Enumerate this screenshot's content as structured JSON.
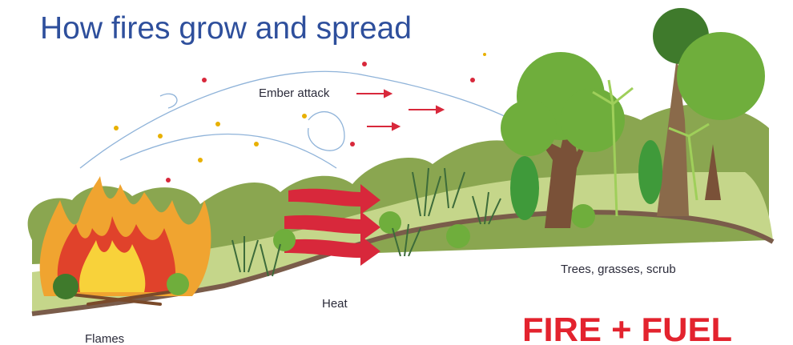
{
  "title": "How fires grow and spread",
  "labels": {
    "ember_attack": "Ember attack",
    "heat": "Heat",
    "flames": "Flames",
    "vegetation": "Trees, grasses, scrub"
  },
  "logo": "FIRE + FUEL"
}
